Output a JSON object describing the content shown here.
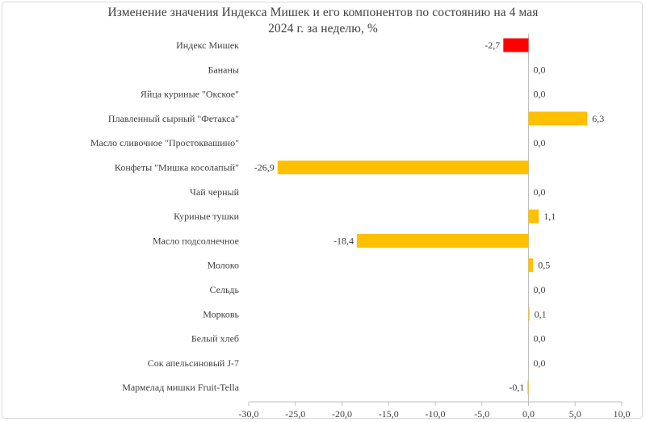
{
  "chart_data": {
    "type": "bar",
    "orientation": "horizontal",
    "title": "Изменение значения Индекса Мишек и его компонентов по состоянию на 4 мая 2024 г. за неделю, %",
    "categories": [
      "Индекс Мишек",
      "Бананы",
      "Яйца куриные \"Окское\"",
      "Плавленный сырный \"Фетакса\"",
      "Масло сливочное \"Простоквашино\"",
      "Конфеты \"Мишка косолапый\"",
      "Чай черный",
      "Куриные тушки",
      "Масло подсолнечное",
      "Молоко",
      "Сельдь",
      "Морковь",
      "Белый хлеб",
      "Сок апельсиновый J-7",
      "Мармелад мишки Fruit-Tella"
    ],
    "values": [
      -2.7,
      0.0,
      0.0,
      6.3,
      0.0,
      -26.9,
      0.0,
      1.1,
      -18.4,
      0.5,
      0.0,
      0.1,
      0.0,
      0.0,
      -0.1
    ],
    "value_labels": [
      "-2,7",
      "0,0",
      "0,0",
      "6,3",
      "0,0",
      "-26,9",
      "0,0",
      "1,1",
      "-18,4",
      "0,5",
      "0,0",
      "0,1",
      "0,0",
      "0,0",
      "-0,1"
    ],
    "xlim": [
      -30,
      10
    ],
    "x_ticks": [
      -30,
      -25,
      -20,
      -15,
      -10,
      -5,
      0,
      5,
      10
    ],
    "x_tick_labels": [
      "-30,0",
      "-25,0",
      "-20,0",
      "-15,0",
      "-10,0",
      "-5,0",
      "0,0",
      "5,0",
      "10,0"
    ],
    "grid": false,
    "colors": {
      "highlight": "#ff0000",
      "bars": "#ffc000",
      "axis": "#bfbfbf",
      "text": "#404040"
    }
  }
}
